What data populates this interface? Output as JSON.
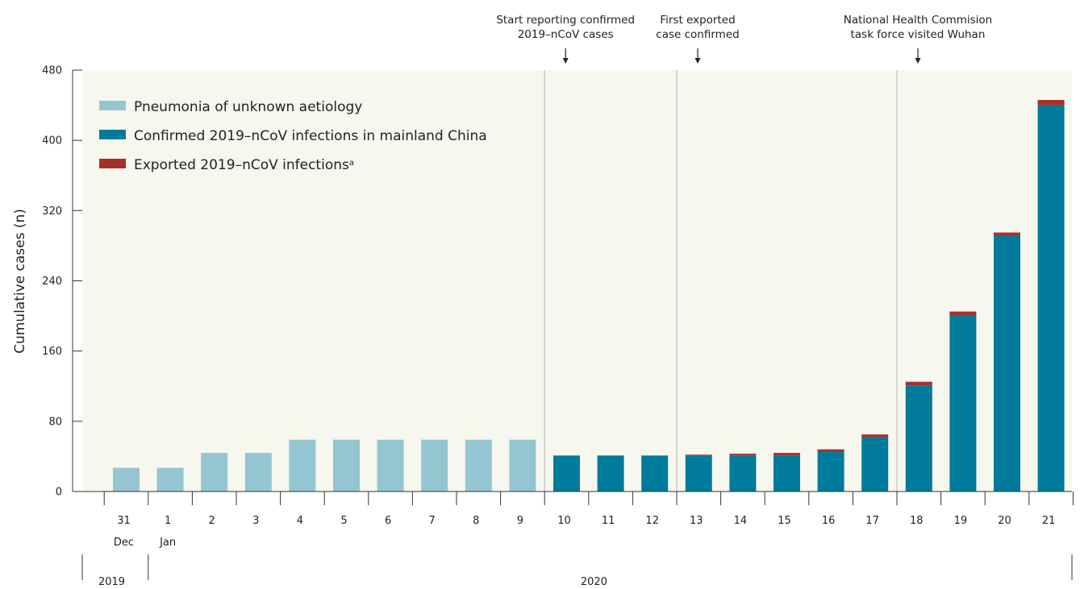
{
  "chart_data": {
    "type": "bar",
    "stacked": true,
    "ylabel": "Cumulative cases (n)",
    "ylim": [
      0,
      480
    ],
    "yticks": [
      0,
      80,
      160,
      240,
      320,
      400,
      480
    ],
    "grid": false,
    "legend_position": "top-left",
    "categories": [
      "31",
      "1",
      "2",
      "3",
      "4",
      "5",
      "6",
      "7",
      "8",
      "9",
      "10",
      "11",
      "12",
      "13",
      "14",
      "15",
      "16",
      "17",
      "18",
      "19",
      "20",
      "21"
    ],
    "month_labels": [
      {
        "category": "31",
        "text": "Dec"
      },
      {
        "category": "1",
        "text": "Jan"
      }
    ],
    "year_labels": [
      {
        "text": "2019"
      },
      {
        "text": "2020"
      }
    ],
    "series": [
      {
        "name": "Pneumonia of unknown aetiology",
        "color": "#93c6d1",
        "values": [
          27,
          27,
          44,
          44,
          59,
          59,
          59,
          59,
          59,
          59,
          0,
          0,
          0,
          0,
          0,
          0,
          0,
          0,
          0,
          0,
          0,
          0
        ]
      },
      {
        "name": "Confirmed 2019–nCoV infections in mainland China",
        "color": "#007b9b",
        "values": [
          0,
          0,
          0,
          0,
          0,
          0,
          0,
          0,
          0,
          0,
          41,
          41,
          41,
          41,
          41,
          41,
          45,
          62,
          121,
          201,
          291,
          440
        ]
      },
      {
        "name": "Exported 2019–nCoV infections",
        "superscript": "a",
        "color": "#a8302a",
        "values": [
          0,
          0,
          0,
          0,
          0,
          0,
          0,
          0,
          0,
          0,
          0,
          0,
          0,
          1,
          2,
          3,
          3,
          3,
          4,
          4,
          4,
          6
        ]
      }
    ],
    "annotations": [
      {
        "after_category": "9",
        "lines": [
          "Start reporting confirmed",
          "2019–nCoV cases"
        ]
      },
      {
        "after_category": "12",
        "lines": [
          "First exported",
          "case confirmed"
        ]
      },
      {
        "after_category": "17",
        "lines": [
          "National Health Commision",
          "task force visited Wuhan"
        ]
      }
    ],
    "colors": {
      "plot_background": "#f6f7ee",
      "divider": "#c4c4c4",
      "axis": "#333333"
    }
  }
}
